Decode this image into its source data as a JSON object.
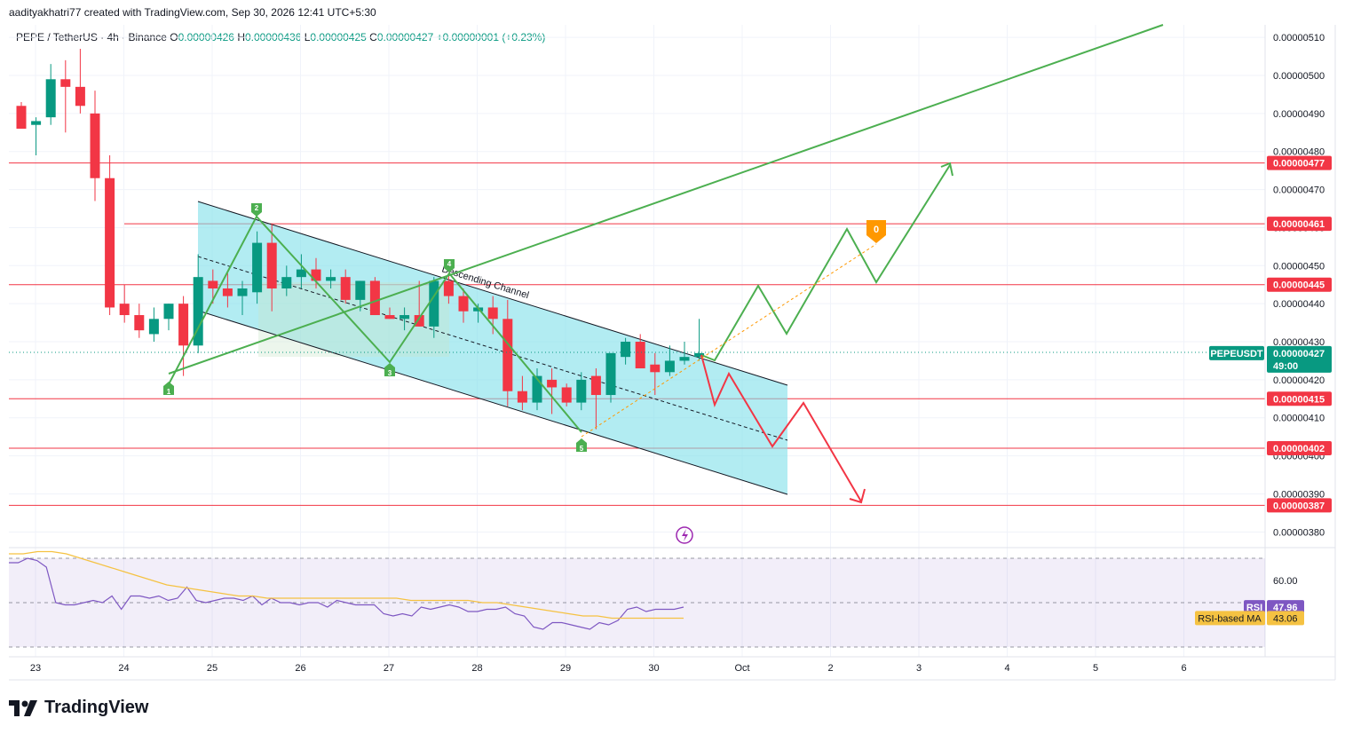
{
  "header": {
    "created_by": "aadityakhatri77 created with TradingView.com, Sep 30, 2026 12:41 UTC+5:30",
    "symbol": "PEPE / TetherUS · 4h · Binance",
    "open_label": "O",
    "open": "0.00000426",
    "high_label": "H",
    "high": "0.00000436",
    "low_label": "L",
    "low": "0.00000425",
    "close_label": "C",
    "close": "0.00000427",
    "change": "+0.00000001 (+0.23%)"
  },
  "brand": {
    "name": "TradingView"
  },
  "colors": {
    "up": "#089981",
    "down": "#f23645",
    "channel_fill": "#7fdfea",
    "green_line": "#4caf50",
    "red_line": "#f23645",
    "rsi": "#7e57c2",
    "rsi_ma": "#f5c242"
  },
  "chart_data": {
    "type": "candlestick",
    "timeframe": "4h",
    "ylim": [
      3.76e-06,
      5.12e-06
    ],
    "y_ticks": [
      "0.00000510",
      "0.00000500",
      "0.00000490",
      "0.00000480",
      "0.00000470",
      "0.00000460",
      "0.00000450",
      "0.00000440",
      "0.00000430",
      "0.00000420",
      "0.00000410",
      "0.00000400",
      "0.00000390",
      "0.00000380"
    ],
    "x_ticks": [
      "23",
      "24",
      "25",
      "26",
      "27",
      "28",
      "29",
      "30",
      "Oct",
      "2",
      "3",
      "4",
      "5",
      "6"
    ],
    "candles": [
      {
        "o": 4.92,
        "h": 4.93,
        "l": 4.86,
        "c": 4.86
      },
      {
        "o": 4.87,
        "h": 4.89,
        "l": 4.79,
        "c": 4.88
      },
      {
        "o": 4.89,
        "h": 5.03,
        "l": 4.87,
        "c": 4.99
      },
      {
        "o": 4.99,
        "h": 5.04,
        "l": 4.85,
        "c": 4.97
      },
      {
        "o": 4.97,
        "h": 5.07,
        "l": 4.9,
        "c": 4.92
      },
      {
        "o": 4.9,
        "h": 4.96,
        "l": 4.67,
        "c": 4.73
      },
      {
        "o": 4.73,
        "h": 4.79,
        "l": 4.37,
        "c": 4.39
      },
      {
        "o": 4.4,
        "h": 4.45,
        "l": 4.35,
        "c": 4.37
      },
      {
        "o": 4.37,
        "h": 4.4,
        "l": 4.31,
        "c": 4.33
      },
      {
        "o": 4.32,
        "h": 4.39,
        "l": 4.3,
        "c": 4.36
      },
      {
        "o": 4.36,
        "h": 4.4,
        "l": 4.33,
        "c": 4.4
      },
      {
        "o": 4.4,
        "h": 4.42,
        "l": 4.21,
        "c": 4.29
      },
      {
        "o": 4.29,
        "h": 4.53,
        "l": 4.27,
        "c": 4.47
      },
      {
        "o": 4.46,
        "h": 4.49,
        "l": 4.4,
        "c": 4.44
      },
      {
        "o": 4.44,
        "h": 4.48,
        "l": 4.39,
        "c": 4.42
      },
      {
        "o": 4.42,
        "h": 4.46,
        "l": 4.37,
        "c": 4.44
      },
      {
        "o": 4.43,
        "h": 4.59,
        "l": 4.4,
        "c": 4.56
      },
      {
        "o": 4.56,
        "h": 4.61,
        "l": 4.38,
        "c": 4.44
      },
      {
        "o": 4.44,
        "h": 4.5,
        "l": 4.42,
        "c": 4.47
      },
      {
        "o": 4.47,
        "h": 4.53,
        "l": 4.44,
        "c": 4.49
      },
      {
        "o": 4.49,
        "h": 4.52,
        "l": 4.44,
        "c": 4.46
      },
      {
        "o": 4.46,
        "h": 4.49,
        "l": 4.44,
        "c": 4.47
      },
      {
        "o": 4.47,
        "h": 4.49,
        "l": 4.4,
        "c": 4.41
      },
      {
        "o": 4.41,
        "h": 4.46,
        "l": 4.38,
        "c": 4.46
      },
      {
        "o": 4.46,
        "h": 4.47,
        "l": 4.37,
        "c": 4.37
      },
      {
        "o": 4.37,
        "h": 4.39,
        "l": 4.36,
        "c": 4.36
      },
      {
        "o": 4.36,
        "h": 4.39,
        "l": 4.33,
        "c": 4.37
      },
      {
        "o": 4.37,
        "h": 4.46,
        "l": 4.34,
        "c": 4.34
      },
      {
        "o": 4.34,
        "h": 4.47,
        "l": 4.31,
        "c": 4.46
      },
      {
        "o": 4.46,
        "h": 4.48,
        "l": 4.4,
        "c": 4.42
      },
      {
        "o": 4.42,
        "h": 4.44,
        "l": 4.35,
        "c": 4.38
      },
      {
        "o": 4.38,
        "h": 4.4,
        "l": 4.35,
        "c": 4.39
      },
      {
        "o": 4.39,
        "h": 4.42,
        "l": 4.32,
        "c": 4.36
      },
      {
        "o": 4.36,
        "h": 4.41,
        "l": 4.13,
        "c": 4.17
      },
      {
        "o": 4.17,
        "h": 4.21,
        "l": 4.12,
        "c": 4.14
      },
      {
        "o": 4.14,
        "h": 4.23,
        "l": 4.12,
        "c": 4.21
      },
      {
        "o": 4.2,
        "h": 4.23,
        "l": 4.11,
        "c": 4.18
      },
      {
        "o": 4.18,
        "h": 4.19,
        "l": 4.13,
        "c": 4.14
      },
      {
        "o": 4.14,
        "h": 4.22,
        "l": 4.12,
        "c": 4.2
      },
      {
        "o": 4.21,
        "h": 4.23,
        "l": 4.07,
        "c": 4.16
      },
      {
        "o": 4.16,
        "h": 4.27,
        "l": 4.14,
        "c": 4.27
      },
      {
        "o": 4.26,
        "h": 4.31,
        "l": 4.24,
        "c": 4.3
      },
      {
        "o": 4.3,
        "h": 4.32,
        "l": 4.23,
        "c": 4.23
      },
      {
        "o": 4.24,
        "h": 4.27,
        "l": 4.16,
        "c": 4.22
      },
      {
        "o": 4.22,
        "h": 4.29,
        "l": 4.21,
        "c": 4.25
      },
      {
        "o": 4.25,
        "h": 4.3,
        "l": 4.24,
        "c": 4.26
      },
      {
        "o": 4.26,
        "h": 4.36,
        "l": 4.25,
        "c": 4.27
      }
    ],
    "horizontal_levels": [
      "0.00000477",
      "0.00000461",
      "0.00000445",
      "0.00000415",
      "0.00000402",
      "0.00000387"
    ],
    "current_price": {
      "symbol": "PEPEUSDT",
      "value": "0.00000427",
      "countdown": "49:00"
    },
    "channel_label": "Descending Channel",
    "wave_points": [
      "1",
      "2",
      "3",
      "4",
      "5"
    ],
    "projection_marker": "0",
    "rsi": {
      "name": "RSI",
      "value": "47.96",
      "ma_name": "RSI-based MA",
      "ma_value": "43.06",
      "tick": "60.00",
      "values": [
        68,
        68,
        70,
        69,
        66,
        50,
        49,
        49,
        50,
        51,
        50,
        53,
        47,
        53,
        53,
        52,
        53,
        51,
        52,
        57,
        51,
        50,
        51,
        52,
        52,
        51,
        53,
        49,
        52,
        50,
        50,
        49,
        50,
        50,
        48,
        51,
        50,
        49,
        49,
        49,
        45,
        44,
        45,
        44,
        48,
        47,
        48,
        49,
        48,
        46,
        46,
        47,
        47,
        48,
        45,
        44,
        39,
        38,
        41,
        41,
        40,
        39,
        38,
        41,
        40,
        42,
        47,
        48,
        46,
        47,
        47,
        47,
        48
      ],
      "ma_values": [
        72,
        72,
        73,
        73,
        72,
        70,
        68,
        66,
        64,
        62,
        60,
        58,
        57,
        56,
        55,
        54,
        53,
        53,
        52,
        52,
        52,
        52,
        52,
        52,
        52,
        52,
        52,
        52,
        51,
        51,
        51,
        51,
        51,
        50,
        50,
        49,
        48,
        47,
        46,
        45,
        44,
        44,
        43,
        43,
        43,
        43,
        43,
        43
      ]
    }
  }
}
